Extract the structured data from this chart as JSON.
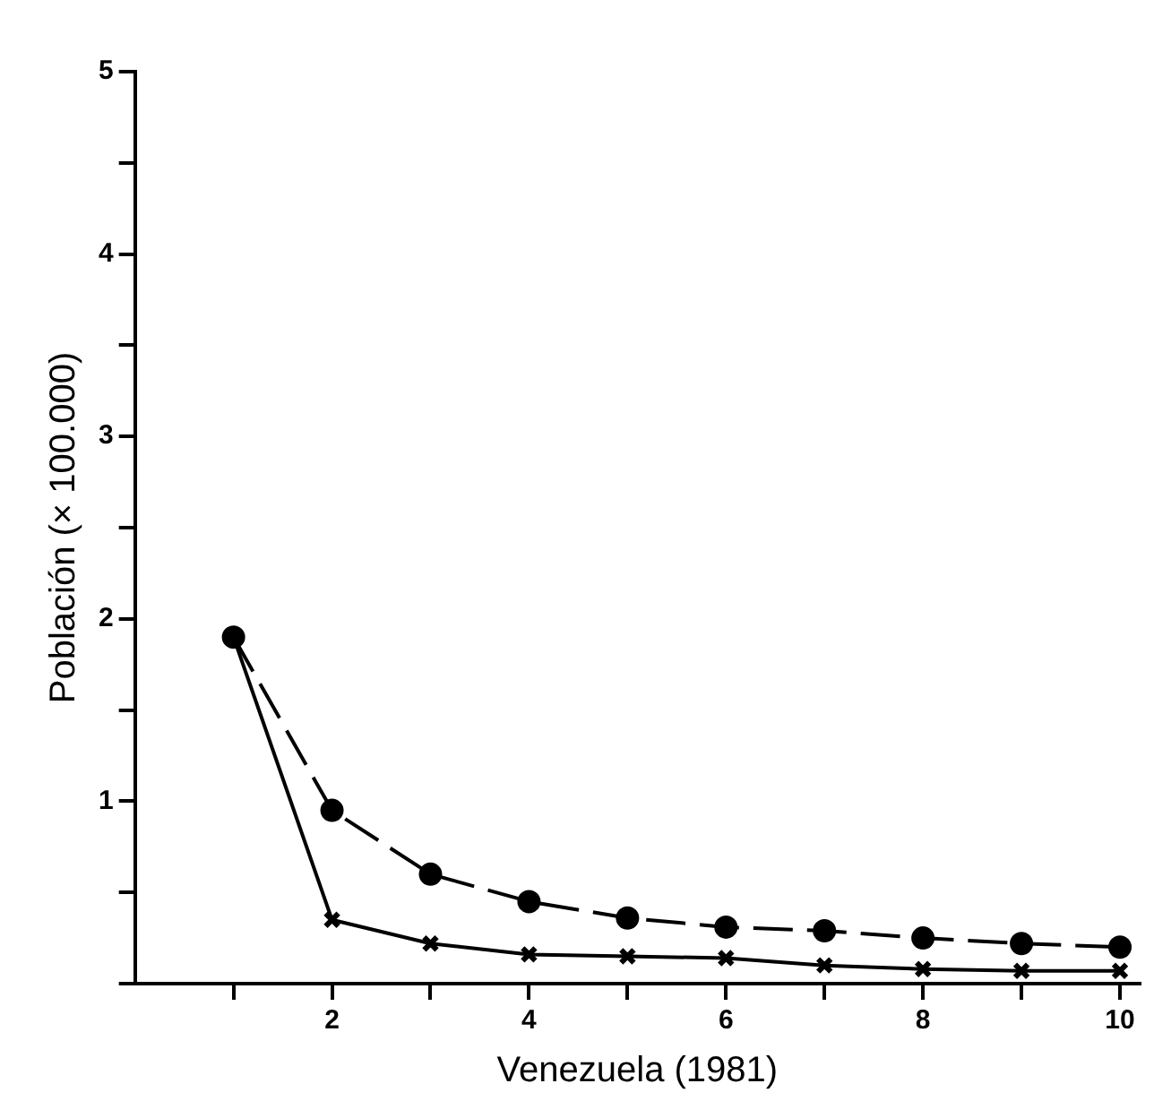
{
  "chart_data": {
    "type": "line",
    "xlabel": "Venezuela (1981)",
    "ylabel": "Población (× 100.000)",
    "x": [
      1,
      2,
      3,
      4,
      5,
      6,
      7,
      8,
      9,
      10
    ],
    "series": [
      {
        "color": "#000000",
        "marker": "circle",
        "line_style": "dashed",
        "values": [
          1.9,
          0.95,
          0.6,
          0.45,
          0.36,
          0.31,
          0.29,
          0.25,
          0.22,
          0.2
        ]
      },
      {
        "color": "#000000",
        "marker": "cross",
        "line_style": "solid",
        "values": [
          1.9,
          0.35,
          0.22,
          0.16,
          0.15,
          0.14,
          0.1,
          0.08,
          0.07,
          0.07
        ]
      }
    ],
    "xlim": [
      0,
      10.2
    ],
    "xticks": [
      {
        "value": 1,
        "label": null
      },
      2,
      {
        "value": 3,
        "label": null
      },
      4,
      {
        "value": 5,
        "label": null
      },
      6,
      {
        "value": 7,
        "label": null
      },
      8,
      {
        "value": 9,
        "label": null
      },
      10
    ],
    "ylim": [
      0,
      5
    ],
    "yticks": [
      {
        "value": 0,
        "label": null
      },
      {
        "value": 0.5,
        "label": null
      },
      1,
      {
        "value": 1.5,
        "label": null
      },
      2,
      {
        "value": 2.5,
        "label": null
      },
      3,
      {
        "value": 3.5,
        "label": null
      },
      4,
      {
        "value": 4.5,
        "label": null
      },
      5
    ],
    "grid": false,
    "legend": false
  }
}
